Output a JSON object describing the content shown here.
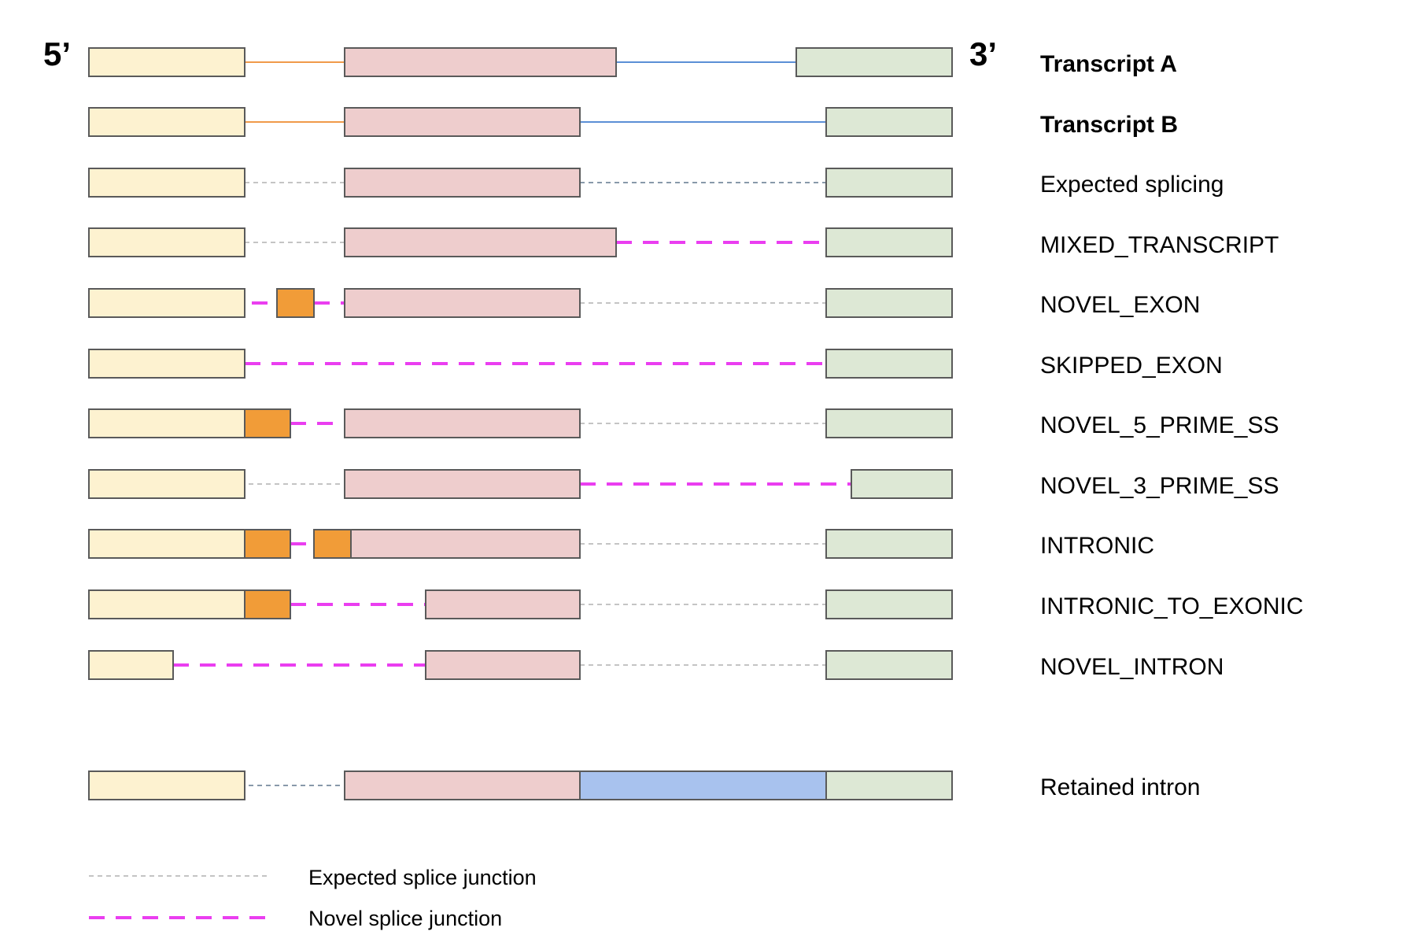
{
  "end_labels": {
    "five_prime": "5’",
    "three_prime": "3’"
  },
  "colors": {
    "exon1": "#fdf2d0",
    "exon2": "#eecdcd",
    "exon3": "#dde8d5",
    "novel_exon": "#f19c38",
    "retained_intron": "#a8c2ee",
    "exon_border": "#5a5a5a",
    "transcript_a_junction_1": "#f09a4a",
    "transcript_a_junction_2": "#5b8fd6",
    "expected_junction": "#c4c4c4",
    "expected_junction_dark": "#8899aa",
    "novel_junction": "#ea3ef0"
  },
  "rows": [
    {
      "label": "Transcript A",
      "bold": true
    },
    {
      "label": "Transcript B",
      "bold": true
    },
    {
      "label": "Expected splicing",
      "bold": false
    },
    {
      "label": "MIXED_TRANSCRIPT",
      "bold": false
    },
    {
      "label": "NOVEL_EXON",
      "bold": false
    },
    {
      "label": "SKIPPED_EXON",
      "bold": false
    },
    {
      "label": "NOVEL_5_PRIME_SS",
      "bold": false
    },
    {
      "label": "NOVEL_3_PRIME_SS",
      "bold": false
    },
    {
      "label": "INTRONIC",
      "bold": false
    },
    {
      "label": "INTRONIC_TO_EXONIC",
      "bold": false
    },
    {
      "label": "NOVEL_INTRON",
      "bold": false
    },
    {
      "label": "Retained intron",
      "bold": false
    }
  ],
  "legend": {
    "expected": "Expected splice junction",
    "novel": "Novel splice junction"
  }
}
